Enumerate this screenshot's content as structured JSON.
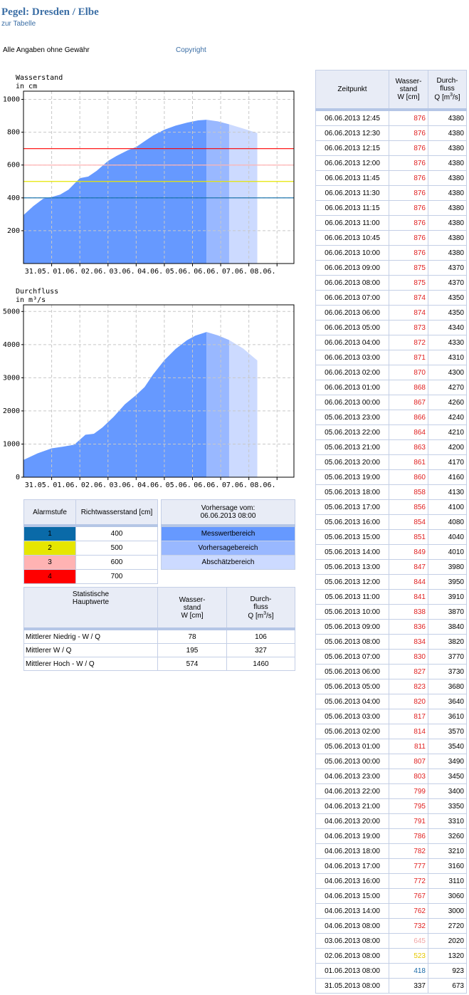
{
  "header": {
    "title": "Pegel: Dresden / Elbe",
    "table_link": "zur Tabelle",
    "disclaimer": "Alle Angaben ohne Gewähr",
    "copyright": "Copyright"
  },
  "colors": {
    "measured": "#6699ff",
    "forecast": "#99b8ff",
    "estimate": "#ccdaff",
    "alarm_1": "#0a6aa8",
    "alarm_2": "#e6e600",
    "alarm_3": "#ffb3b3",
    "alarm_4": "#ff0000"
  },
  "chart_data": [
    {
      "type": "area",
      "title": "Wasserstand",
      "ylabel": "in cm",
      "x_ticks": [
        "31.05.",
        "01.06.",
        "02.06.",
        "03.06.",
        "04.06.",
        "05.06.",
        "06.06.",
        "07.06.",
        "08.06."
      ],
      "xlim": [
        0,
        9.6
      ],
      "ylim": [
        0,
        1050
      ],
      "y_ticks": [
        200,
        400,
        600,
        800,
        1000
      ],
      "grid": true,
      "thresholds": [
        {
          "value": 400,
          "color": "#0a6aa8"
        },
        {
          "value": 500,
          "color": "#e6e600"
        },
        {
          "value": 600,
          "color": "#ffb3b3"
        },
        {
          "value": 700,
          "color": "#ff0000"
        }
      ],
      "series": [
        {
          "region": "measured",
          "color": "#6699ff",
          "points": [
            [
              0,
              295
            ],
            [
              0.35,
              350
            ],
            [
              0.7,
              395
            ],
            [
              1.0,
              405
            ],
            [
              1.3,
              420
            ],
            [
              1.6,
              450
            ],
            [
              2.0,
              520
            ],
            [
              2.3,
              530
            ],
            [
              2.6,
              565
            ],
            [
              3.0,
              625
            ],
            [
              3.3,
              655
            ],
            [
              3.7,
              690
            ],
            [
              4.0,
              710
            ],
            [
              4.3,
              745
            ],
            [
              4.6,
              780
            ],
            [
              5.0,
              815
            ],
            [
              5.4,
              840
            ],
            [
              5.8,
              858
            ],
            [
              6.2,
              872
            ],
            [
              6.5,
              876
            ]
          ]
        },
        {
          "region": "forecast",
          "color": "#99b8ff",
          "points": [
            [
              6.5,
              876
            ],
            [
              6.9,
              866
            ],
            [
              7.3,
              848
            ]
          ]
        },
        {
          "region": "estimate",
          "color": "#ccdaff",
          "points": [
            [
              7.3,
              848
            ],
            [
              7.8,
              822
            ],
            [
              8.3,
              795
            ]
          ]
        }
      ]
    },
    {
      "type": "area",
      "title": "Durchfluss",
      "ylabel": "in m³/s",
      "x_ticks": [
        "31.05.",
        "01.06.",
        "02.06.",
        "03.06.",
        "04.06.",
        "05.06.",
        "06.06.",
        "07.06.",
        "08.06."
      ],
      "xlim": [
        0,
        9.6
      ],
      "ylim": [
        0,
        5200
      ],
      "y_ticks": [
        0,
        1000,
        2000,
        3000,
        4000,
        5000
      ],
      "grid": true,
      "series": [
        {
          "region": "measured",
          "color": "#6699ff",
          "points": [
            [
              0,
              520
            ],
            [
              0.5,
              720
            ],
            [
              1.0,
              870
            ],
            [
              1.4,
              920
            ],
            [
              1.8,
              980
            ],
            [
              2.2,
              1280
            ],
            [
              2.5,
              1310
            ],
            [
              2.8,
              1500
            ],
            [
              3.2,
              1820
            ],
            [
              3.6,
              2200
            ],
            [
              4.0,
              2480
            ],
            [
              4.3,
              2720
            ],
            [
              4.6,
              3100
            ],
            [
              5.0,
              3530
            ],
            [
              5.4,
              3870
            ],
            [
              5.8,
              4130
            ],
            [
              6.1,
              4270
            ],
            [
              6.5,
              4380
            ]
          ]
        },
        {
          "region": "forecast",
          "color": "#99b8ff",
          "points": [
            [
              6.5,
              4380
            ],
            [
              6.9,
              4280
            ],
            [
              7.3,
              4140
            ]
          ]
        },
        {
          "region": "estimate",
          "color": "#ccdaff",
          "points": [
            [
              7.3,
              4140
            ],
            [
              7.8,
              3880
            ],
            [
              8.3,
              3520
            ]
          ]
        }
      ]
    }
  ],
  "alarm_table": {
    "col1": "Alarmstufe",
    "col2": "Richtwasserstand [cm]",
    "rows": [
      {
        "level": "1",
        "value": "400",
        "color": "#0a6aa8"
      },
      {
        "level": "2",
        "value": "500",
        "color": "#e6e600"
      },
      {
        "level": "3",
        "value": "600",
        "color": "#ffb3b3"
      },
      {
        "level": "4",
        "value": "700",
        "color": "#ff0000"
      }
    ]
  },
  "legend_table": {
    "header_line1": "Vorhersage vom:",
    "header_line2": "06.06.2013 08:00",
    "items": [
      {
        "label": "Messwertbereich",
        "color": "#6699ff"
      },
      {
        "label": "Vorhersagebereich",
        "color": "#99b8ff"
      },
      {
        "label": "Abschätzbereich",
        "color": "#ccdaff"
      }
    ]
  },
  "stats_table": {
    "col1_line1": "Statistische",
    "col1_line2": "Hauptwerte",
    "col2_line1": "Wasser-",
    "col2_line2": "stand",
    "col2_line3": "W [cm]",
    "col3_line1": "Durch-",
    "col3_line2": "fluss",
    "col3_line3": "Q [m",
    "col3_sup": "3",
    "col3_end": "/s]",
    "rows": [
      {
        "label": "Mittlerer Niedrig - W / Q",
        "w": "78",
        "q": "106"
      },
      {
        "label": "Mittlerer W / Q",
        "w": "195",
        "q": "327"
      },
      {
        "label": "Mittlerer Hoch - W / Q",
        "w": "574",
        "q": "1460"
      }
    ]
  },
  "measure_table": {
    "col1": "Zeitpunkt",
    "col2_line1": "Wasser-",
    "col2_line2": "stand",
    "col2_line3": "W [cm]",
    "col3_line1": "Durch-",
    "col3_line2": "fluss",
    "col3_line3": "Q [m",
    "col3_sup": "3",
    "col3_end": "/s]",
    "rows": [
      {
        "t": "06.06.2013 12:45",
        "w": "876",
        "q": "4380",
        "wc": "#e02020"
      },
      {
        "t": "06.06.2013 12:30",
        "w": "876",
        "q": "4380",
        "wc": "#e02020"
      },
      {
        "t": "06.06.2013 12:15",
        "w": "876",
        "q": "4380",
        "wc": "#e02020"
      },
      {
        "t": "06.06.2013 12:00",
        "w": "876",
        "q": "4380",
        "wc": "#e02020"
      },
      {
        "t": "06.06.2013 11:45",
        "w": "876",
        "q": "4380",
        "wc": "#e02020"
      },
      {
        "t": "06.06.2013 11:30",
        "w": "876",
        "q": "4380",
        "wc": "#e02020"
      },
      {
        "t": "06.06.2013 11:15",
        "w": "876",
        "q": "4380",
        "wc": "#e02020"
      },
      {
        "t": "06.06.2013 11:00",
        "w": "876",
        "q": "4380",
        "wc": "#e02020"
      },
      {
        "t": "06.06.2013 10:45",
        "w": "876",
        "q": "4380",
        "wc": "#e02020"
      },
      {
        "t": "06.06.2013 10:00",
        "w": "876",
        "q": "4380",
        "wc": "#e02020"
      },
      {
        "t": "06.06.2013 09:00",
        "w": "875",
        "q": "4370",
        "wc": "#e02020"
      },
      {
        "t": "06.06.2013 08:00",
        "w": "875",
        "q": "4370",
        "wc": "#e02020"
      },
      {
        "t": "06.06.2013 07:00",
        "w": "874",
        "q": "4350",
        "wc": "#e02020"
      },
      {
        "t": "06.06.2013 06:00",
        "w": "874",
        "q": "4350",
        "wc": "#e02020"
      },
      {
        "t": "06.06.2013 05:00",
        "w": "873",
        "q": "4340",
        "wc": "#e02020"
      },
      {
        "t": "06.06.2013 04:00",
        "w": "872",
        "q": "4330",
        "wc": "#e02020"
      },
      {
        "t": "06.06.2013 03:00",
        "w": "871",
        "q": "4310",
        "wc": "#e02020"
      },
      {
        "t": "06.06.2013 02:00",
        "w": "870",
        "q": "4300",
        "wc": "#e02020"
      },
      {
        "t": "06.06.2013 01:00",
        "w": "868",
        "q": "4270",
        "wc": "#e02020"
      },
      {
        "t": "06.06.2013 00:00",
        "w": "867",
        "q": "4260",
        "wc": "#e02020"
      },
      {
        "t": "05.06.2013 23:00",
        "w": "866",
        "q": "4240",
        "wc": "#e02020"
      },
      {
        "t": "05.06.2013 22:00",
        "w": "864",
        "q": "4210",
        "wc": "#e02020"
      },
      {
        "t": "05.06.2013 21:00",
        "w": "863",
        "q": "4200",
        "wc": "#e02020"
      },
      {
        "t": "05.06.2013 20:00",
        "w": "861",
        "q": "4170",
        "wc": "#e02020"
      },
      {
        "t": "05.06.2013 19:00",
        "w": "860",
        "q": "4160",
        "wc": "#e02020"
      },
      {
        "t": "05.06.2013 18:00",
        "w": "858",
        "q": "4130",
        "wc": "#e02020"
      },
      {
        "t": "05.06.2013 17:00",
        "w": "856",
        "q": "4100",
        "wc": "#e02020"
      },
      {
        "t": "05.06.2013 16:00",
        "w": "854",
        "q": "4080",
        "wc": "#e02020"
      },
      {
        "t": "05.06.2013 15:00",
        "w": "851",
        "q": "4040",
        "wc": "#e02020"
      },
      {
        "t": "05.06.2013 14:00",
        "w": "849",
        "q": "4010",
        "wc": "#e02020"
      },
      {
        "t": "05.06.2013 13:00",
        "w": "847",
        "q": "3980",
        "wc": "#e02020"
      },
      {
        "t": "05.06.2013 12:00",
        "w": "844",
        "q": "3950",
        "wc": "#e02020"
      },
      {
        "t": "05.06.2013 11:00",
        "w": "841",
        "q": "3910",
        "wc": "#e02020"
      },
      {
        "t": "05.06.2013 10:00",
        "w": "838",
        "q": "3870",
        "wc": "#e02020"
      },
      {
        "t": "05.06.2013 09:00",
        "w": "836",
        "q": "3840",
        "wc": "#e02020"
      },
      {
        "t": "05.06.2013 08:00",
        "w": "834",
        "q": "3820",
        "wc": "#e02020"
      },
      {
        "t": "05.06.2013 07:00",
        "w": "830",
        "q": "3770",
        "wc": "#e02020"
      },
      {
        "t": "05.06.2013 06:00",
        "w": "827",
        "q": "3730",
        "wc": "#e02020"
      },
      {
        "t": "05.06.2013 05:00",
        "w": "823",
        "q": "3680",
        "wc": "#e02020"
      },
      {
        "t": "05.06.2013 04:00",
        "w": "820",
        "q": "3640",
        "wc": "#e02020"
      },
      {
        "t": "05.06.2013 03:00",
        "w": "817",
        "q": "3610",
        "wc": "#e02020"
      },
      {
        "t": "05.06.2013 02:00",
        "w": "814",
        "q": "3570",
        "wc": "#e02020"
      },
      {
        "t": "05.06.2013 01:00",
        "w": "811",
        "q": "3540",
        "wc": "#e02020"
      },
      {
        "t": "05.06.2013 00:00",
        "w": "807",
        "q": "3490",
        "wc": "#e02020"
      },
      {
        "t": "04.06.2013 23:00",
        "w": "803",
        "q": "3450",
        "wc": "#e02020"
      },
      {
        "t": "04.06.2013 22:00",
        "w": "799",
        "q": "3400",
        "wc": "#e02020"
      },
      {
        "t": "04.06.2013 21:00",
        "w": "795",
        "q": "3350",
        "wc": "#e02020"
      },
      {
        "t": "04.06.2013 20:00",
        "w": "791",
        "q": "3310",
        "wc": "#e02020"
      },
      {
        "t": "04.06.2013 19:00",
        "w": "786",
        "q": "3260",
        "wc": "#e02020"
      },
      {
        "t": "04.06.2013 18:00",
        "w": "782",
        "q": "3210",
        "wc": "#e02020"
      },
      {
        "t": "04.06.2013 17:00",
        "w": "777",
        "q": "3160",
        "wc": "#e02020"
      },
      {
        "t": "04.06.2013 16:00",
        "w": "772",
        "q": "3110",
        "wc": "#e02020"
      },
      {
        "t": "04.06.2013 15:00",
        "w": "767",
        "q": "3060",
        "wc": "#e02020"
      },
      {
        "t": "04.06.2013 14:00",
        "w": "762",
        "q": "3000",
        "wc": "#e02020"
      },
      {
        "t": "04.06.2013 08:00",
        "w": "732",
        "q": "2720",
        "wc": "#e02020"
      },
      {
        "t": "03.06.2013 08:00",
        "w": "645",
        "q": "2020",
        "wc": "#f2a6a6"
      },
      {
        "t": "02.06.2013 08:00",
        "w": "523",
        "q": "1320",
        "wc": "#e6c800"
      },
      {
        "t": "01.06.2013 08:00",
        "w": "418",
        "q": "923",
        "wc": "#1a6aa8"
      },
      {
        "t": "31.05.2013 08:00",
        "w": "337",
        "q": "673",
        "wc": "#000000"
      }
    ]
  }
}
